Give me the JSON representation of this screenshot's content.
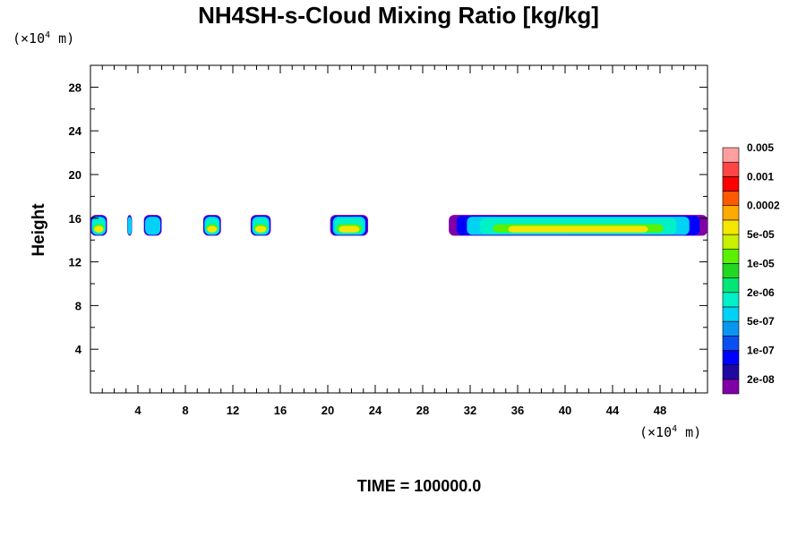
{
  "chart_data": {
    "type": "heatmap",
    "title": "NH4SH-s-Cloud Mixing Ratio [kg/kg]",
    "ylabel": "Height",
    "xlabel": "",
    "x_unit_prefix": "(×10",
    "x_unit_exp": "4",
    "x_unit_suffix": " m)",
    "y_unit_prefix": "(×10",
    "y_unit_exp": "4",
    "y_unit_suffix": " m)",
    "xlim": [
      0,
      52
    ],
    "ylim": [
      0,
      30
    ],
    "x_ticks": [
      4,
      8,
      12,
      16,
      20,
      24,
      28,
      32,
      36,
      40,
      44,
      48
    ],
    "y_ticks": [
      4,
      8,
      12,
      16,
      20,
      24,
      28
    ],
    "x_minor_step": 1,
    "y_minor_step": 2,
    "grid": false,
    "footer": "TIME = 100000.0",
    "colorbar": {
      "colors": [
        "#8000a8",
        "#1e0aa0",
        "#0000ff",
        "#0a50f0",
        "#0a96f0",
        "#00d2f5",
        "#00f0c8",
        "#00e678",
        "#22d722",
        "#5af000",
        "#c8f000",
        "#f5e600",
        "#ffaa00",
        "#ff5a00",
        "#ff0000",
        "#ff4646",
        "#ffa0a0"
      ],
      "labels": [
        "2e-08",
        "1e-07",
        "5e-07",
        "2e-06",
        "1e-05",
        "5e-05",
        "0.0002",
        "0.001",
        "0.005"
      ],
      "label_bins": [
        1,
        3,
        5,
        7,
        9,
        11,
        13,
        15,
        17
      ]
    },
    "cloud_layer": {
      "base_height": 14.4,
      "top_height": 16.3,
      "segments": [
        {
          "x0": 0.0,
          "x1": 1.4,
          "peak": "yellow"
        },
        {
          "x0": 3.1,
          "x1": 3.5,
          "peak": "cyan"
        },
        {
          "x0": 4.5,
          "x1": 6.0,
          "peak": "cyan"
        },
        {
          "x0": 9.5,
          "x1": 11.0,
          "peak": "yellow"
        },
        {
          "x0": 13.5,
          "x1": 15.2,
          "peak": "yellow"
        },
        {
          "x0": 20.2,
          "x1": 23.4,
          "peak": "yellow"
        },
        {
          "x0": 30.2,
          "x1": 52.0,
          "peak": "yellow"
        }
      ]
    }
  }
}
